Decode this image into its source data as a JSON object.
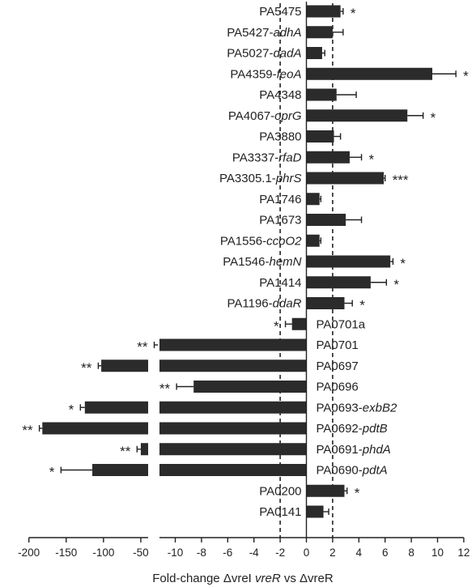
{
  "chart_data": {
    "type": "bar",
    "orientation": "horizontal",
    "xlabel": "Fold-change ΔvreI vreR vs ΔvreR",
    "xlabel_parts": [
      {
        "text": "Fold-change ΔvreI ",
        "italic": false
      },
      {
        "text": "vreR",
        "italic": true
      },
      {
        "text": " vs ΔvreR",
        "italic": false
      }
    ],
    "xlim_left": [
      -200,
      -20
    ],
    "xlim_right": [
      -12,
      12
    ],
    "axis_break": true,
    "xticks_left": [
      "-200",
      "-150",
      "-100",
      "-50"
    ],
    "xticks_right": [
      "-10",
      "-8",
      "-6",
      "-4",
      "-2",
      "0",
      "2",
      "4",
      "6",
      "8",
      "10",
      "12"
    ],
    "reference_lines": [
      -2,
      2
    ],
    "grid": false,
    "legend": "none",
    "colors": {
      "bar": "#2b2b2b",
      "axis": "#222222"
    },
    "categories": [
      {
        "id": "PA5475",
        "gene": "",
        "value": 2.6,
        "error": 0.2,
        "sig": "*"
      },
      {
        "id": "PA5427",
        "gene": "adhA",
        "value": 2.0,
        "error": 0.8,
        "sig": ""
      },
      {
        "id": "PA5027",
        "gene": "dadA",
        "value": 1.2,
        "error": 0.2,
        "sig": ""
      },
      {
        "id": "PA4359",
        "gene": "feoA",
        "value": 9.6,
        "error": 1.8,
        "sig": "*"
      },
      {
        "id": "PA4348",
        "gene": "",
        "value": 2.3,
        "error": 1.5,
        "sig": ""
      },
      {
        "id": "PA4067",
        "gene": "oprG",
        "value": 7.7,
        "error": 1.2,
        "sig": "*"
      },
      {
        "id": "PA3880",
        "gene": "",
        "value": 2.1,
        "error": 0.5,
        "sig": ""
      },
      {
        "id": "PA3337",
        "gene": "rfaD",
        "value": 3.3,
        "error": 0.9,
        "sig": "*"
      },
      {
        "id": "PA3305.1",
        "gene": "phrS",
        "value": 5.9,
        "error": 0.1,
        "sig": "***"
      },
      {
        "id": "PA1746",
        "gene": "",
        "value": 1.0,
        "error": 0.1,
        "sig": ""
      },
      {
        "id": "PA1673",
        "gene": "",
        "value": 3.0,
        "error": 1.2,
        "sig": ""
      },
      {
        "id": "PA1556",
        "gene": "ccoO2",
        "value": 1.0,
        "error": 0.1,
        "sig": ""
      },
      {
        "id": "PA1546",
        "gene": "hemN",
        "value": 6.4,
        "error": 0.2,
        "sig": "*"
      },
      {
        "id": "PA1414",
        "gene": "",
        "value": 4.9,
        "error": 1.2,
        "sig": "*"
      },
      {
        "id": "PA1196",
        "gene": "ddaR",
        "value": 2.9,
        "error": 0.6,
        "sig": "*"
      },
      {
        "id": "PA0701a",
        "gene": "",
        "value": -1.1,
        "error": 0.5,
        "sig": "*"
      },
      {
        "id": "PA0701",
        "gene": "",
        "value": -27,
        "error": 5,
        "sig": "**"
      },
      {
        "id": "PA0697",
        "gene": "",
        "value": -103,
        "error": 4,
        "sig": "**"
      },
      {
        "id": "PA0696",
        "gene": "",
        "value": -8.6,
        "error": 1.3,
        "sig": "**"
      },
      {
        "id": "PA0693",
        "gene": "exbB2",
        "value": -125,
        "error": 6,
        "sig": "*"
      },
      {
        "id": "PA0692",
        "gene": "pdtB",
        "value": -182,
        "error": 4,
        "sig": "**"
      },
      {
        "id": "PA0691",
        "gene": "phdA",
        "value": -50,
        "error": 5,
        "sig": "**"
      },
      {
        "id": "PA0690",
        "gene": "pdtA",
        "value": -115,
        "error": 42,
        "sig": "*"
      },
      {
        "id": "PA0200",
        "gene": "",
        "value": 2.9,
        "error": 0.2,
        "sig": "*"
      },
      {
        "id": "PA0141",
        "gene": "",
        "value": 1.3,
        "error": 0.4,
        "sig": ""
      }
    ]
  }
}
